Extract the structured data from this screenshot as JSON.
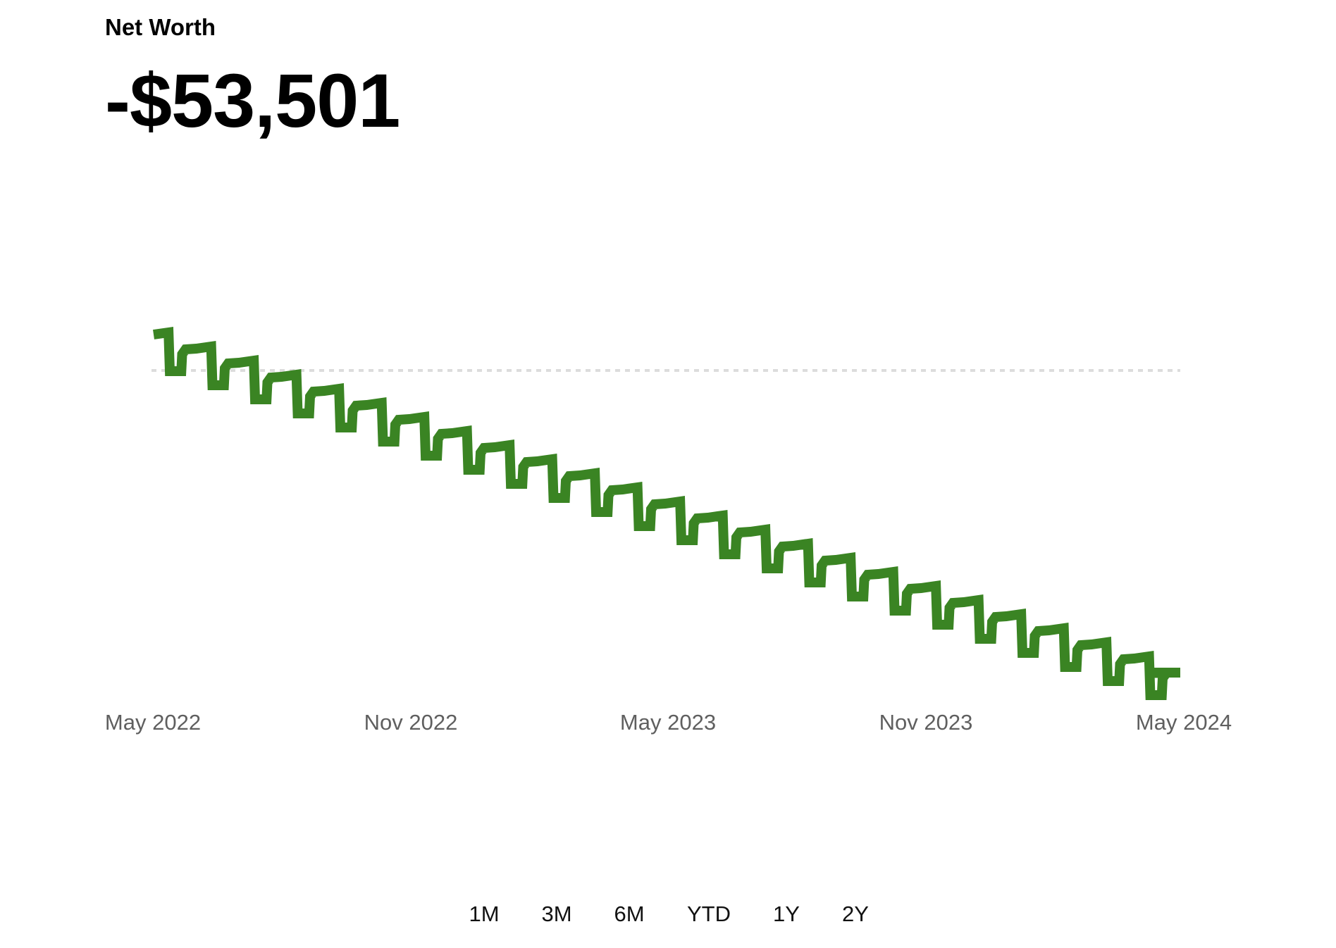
{
  "header": {
    "title": "Net Worth",
    "value": "-$53,501"
  },
  "colors": {
    "line": "#3a8423",
    "baseline": "#dcdcdc",
    "axis_text": "#5f5f5f"
  },
  "range_buttons": [
    "1M",
    "3M",
    "6M",
    "YTD",
    "1Y",
    "2Y"
  ],
  "chart_data": {
    "type": "line",
    "title": "",
    "xlabel": "",
    "ylabel": "",
    "x_tick_labels": [
      "May 2022",
      "Nov 2022",
      "May 2023",
      "Nov 2023",
      "May 2024"
    ],
    "y_axis_shown": false,
    "grid": false,
    "legend": "none",
    "baseline": "dotted reference line near the starting value",
    "pattern": "monthly sawtooth: each month the balance drops sharply, then partially recovers and rises slightly until the next drop",
    "series": [
      {
        "values": [
          [
            2022.375,
            -1500
          ],
          [
            2022.395,
            -1800
          ],
          [
            2022.425,
            -4300
          ],
          [
            2022.43,
            -2200
          ],
          [
            2022.46,
            -1500
          ],
          [
            2022.465,
            -1300
          ],
          [
            2022.5,
            -4700
          ],
          [
            2022.51,
            -3400
          ],
          [
            2022.54,
            -2800
          ]
        ]
      }
    ]
  }
}
